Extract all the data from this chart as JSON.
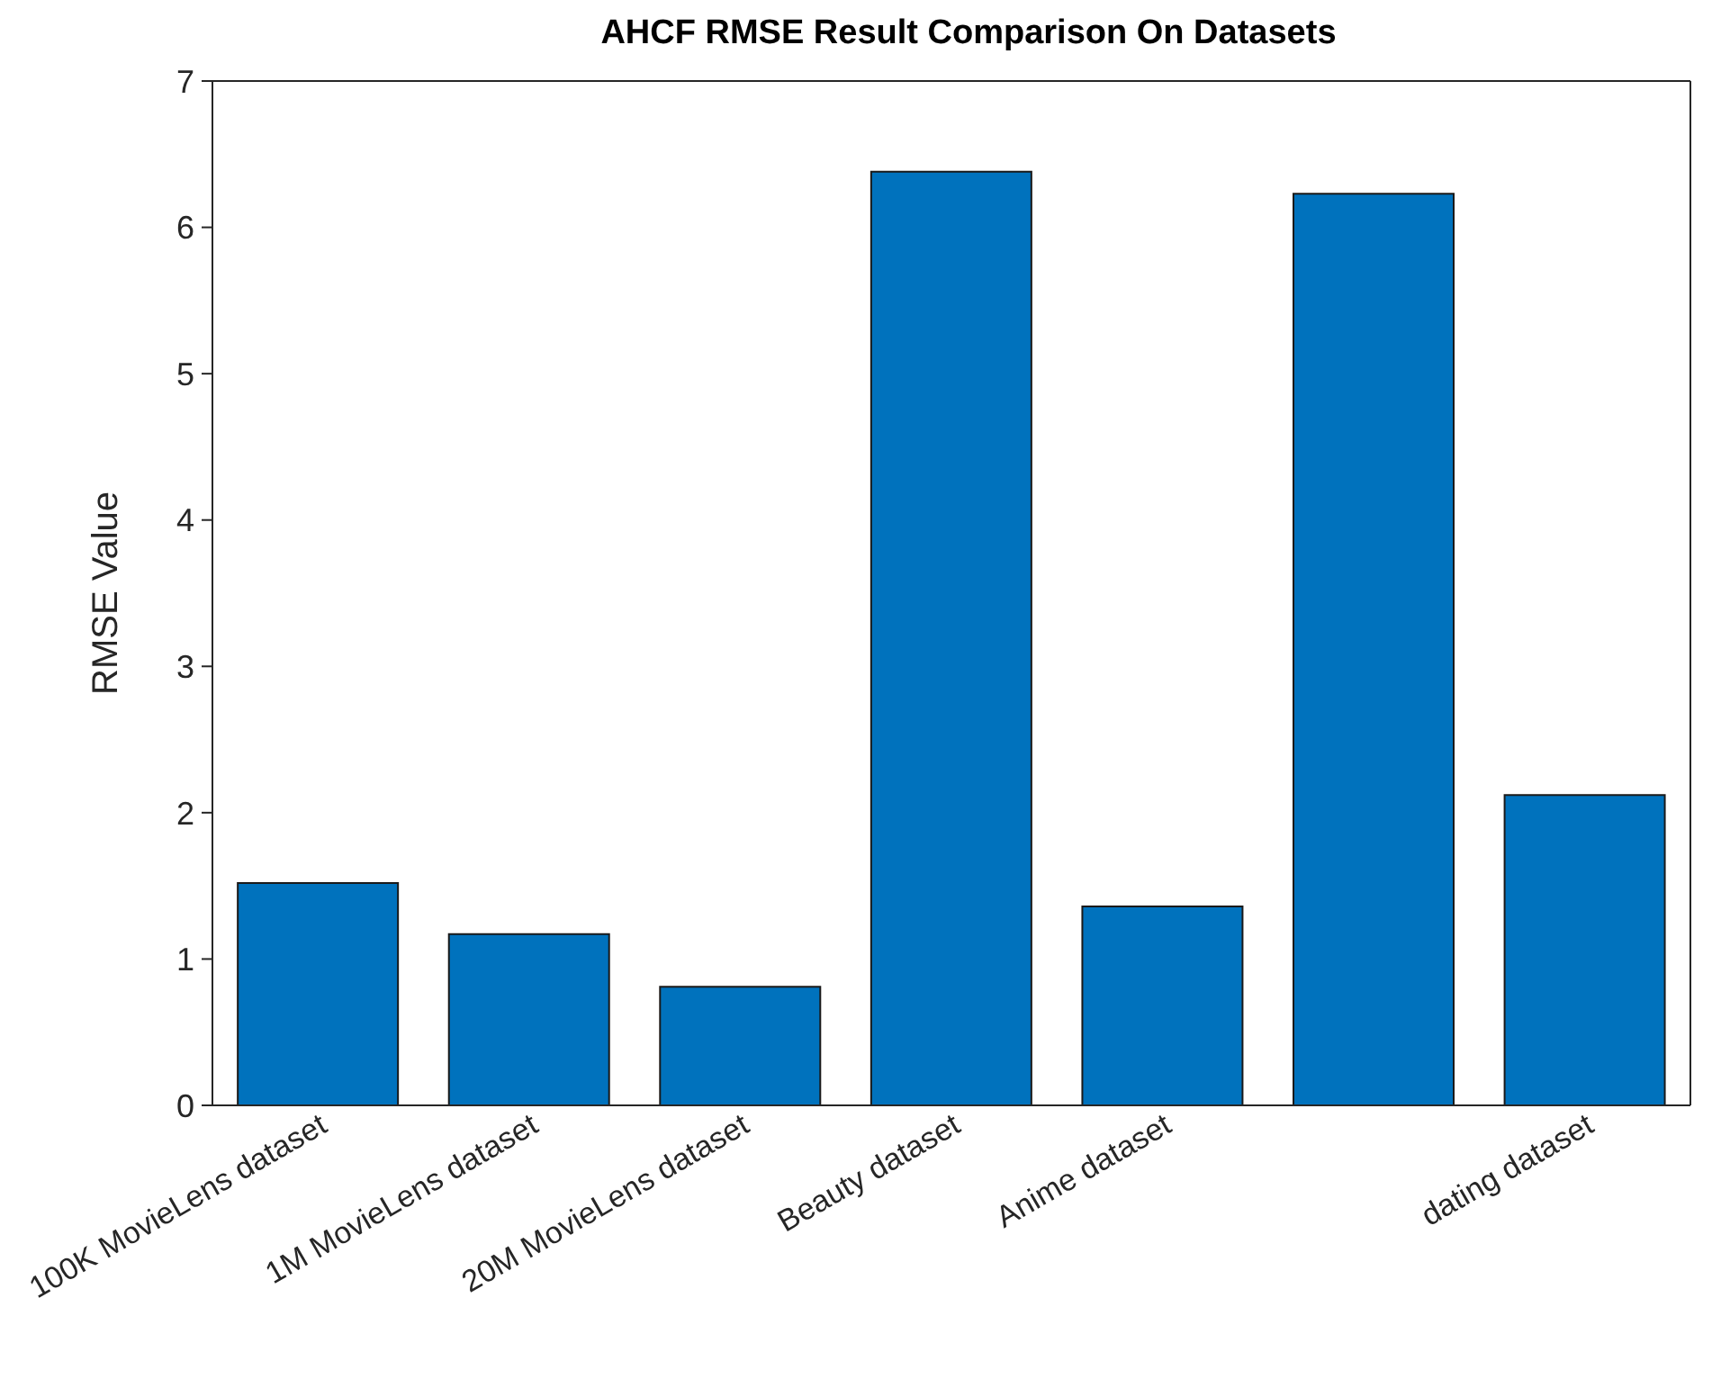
{
  "chart_data": {
    "type": "bar",
    "title": "AHCF RMSE Result Comparison On Datasets",
    "ylabel": "RMSE Value",
    "categories": [
      "100K MovieLens dataset",
      "1M MovieLens dataset",
      "20M MovieLens dataset",
      "Beauty dataset",
      "Anime dataset",
      null,
      "dating dataset"
    ],
    "values": [
      1.52,
      1.17,
      0.81,
      6.38,
      1.36,
      6.23,
      2.12
    ],
    "color": "#0072bd",
    "ylim": [
      0,
      7
    ],
    "yticks": [
      0,
      1,
      2,
      3,
      4,
      5,
      6,
      7
    ],
    "grid": false
  }
}
